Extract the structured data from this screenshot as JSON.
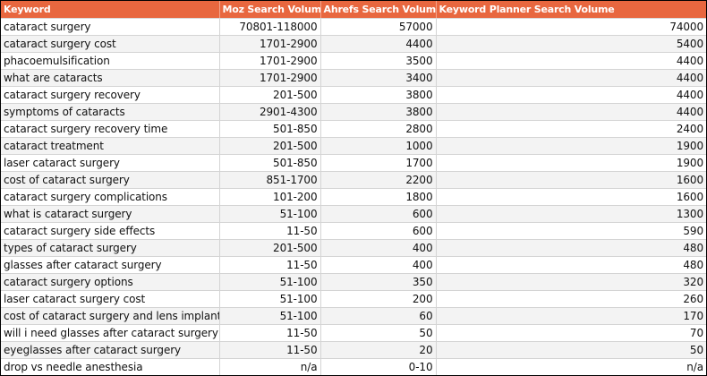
{
  "table": {
    "columns": [
      "Keyword",
      "Moz Search Volume",
      "Ahrefs Search Volume",
      "Keyword Planner Search Volume"
    ],
    "rows": [
      [
        "cataract surgery",
        "70801-118000",
        "57000",
        "74000"
      ],
      [
        "cataract surgery cost",
        "1701-2900",
        "4400",
        "5400"
      ],
      [
        "phacoemulsification",
        "1701-2900",
        "3500",
        "4400"
      ],
      [
        "what are cataracts",
        "1701-2900",
        "3400",
        "4400"
      ],
      [
        "cataract surgery recovery",
        "201-500",
        "3800",
        "4400"
      ],
      [
        "symptoms of cataracts",
        "2901-4300",
        "3800",
        "4400"
      ],
      [
        "cataract surgery recovery time",
        "501-850",
        "2800",
        "2400"
      ],
      [
        "cataract treatment",
        "201-500",
        "1000",
        "1900"
      ],
      [
        "laser cataract surgery",
        "501-850",
        "1700",
        "1900"
      ],
      [
        "cost of cataract surgery",
        "851-1700",
        "2200",
        "1600"
      ],
      [
        "cataract surgery complications",
        "101-200",
        "1800",
        "1600"
      ],
      [
        "what is cataract surgery",
        "51-100",
        "600",
        "1300"
      ],
      [
        "cataract surgery side effects",
        "11-50",
        "600",
        "590"
      ],
      [
        "types of cataract surgery",
        "201-500",
        "400",
        "480"
      ],
      [
        "glasses after cataract surgery",
        "11-50",
        "400",
        "480"
      ],
      [
        "cataract surgery options",
        "51-100",
        "350",
        "320"
      ],
      [
        "laser cataract surgery cost",
        "51-100",
        "200",
        "260"
      ],
      [
        "cost of cataract surgery and lens implant",
        "51-100",
        "60",
        "170"
      ],
      [
        "will i need glasses after cataract surgery",
        "11-50",
        "50",
        "70"
      ],
      [
        "eyeglasses after cataract surgery",
        "11-50",
        "20",
        "50"
      ],
      [
        "drop vs needle anesthesia",
        "n/a",
        "0-10",
        "n/a"
      ]
    ]
  },
  "colors": {
    "header_bg": "#e8673f",
    "header_text": "#ffffff",
    "row_alt_bg": "#f3f3f3",
    "grid_line": "#d4d4d4"
  }
}
